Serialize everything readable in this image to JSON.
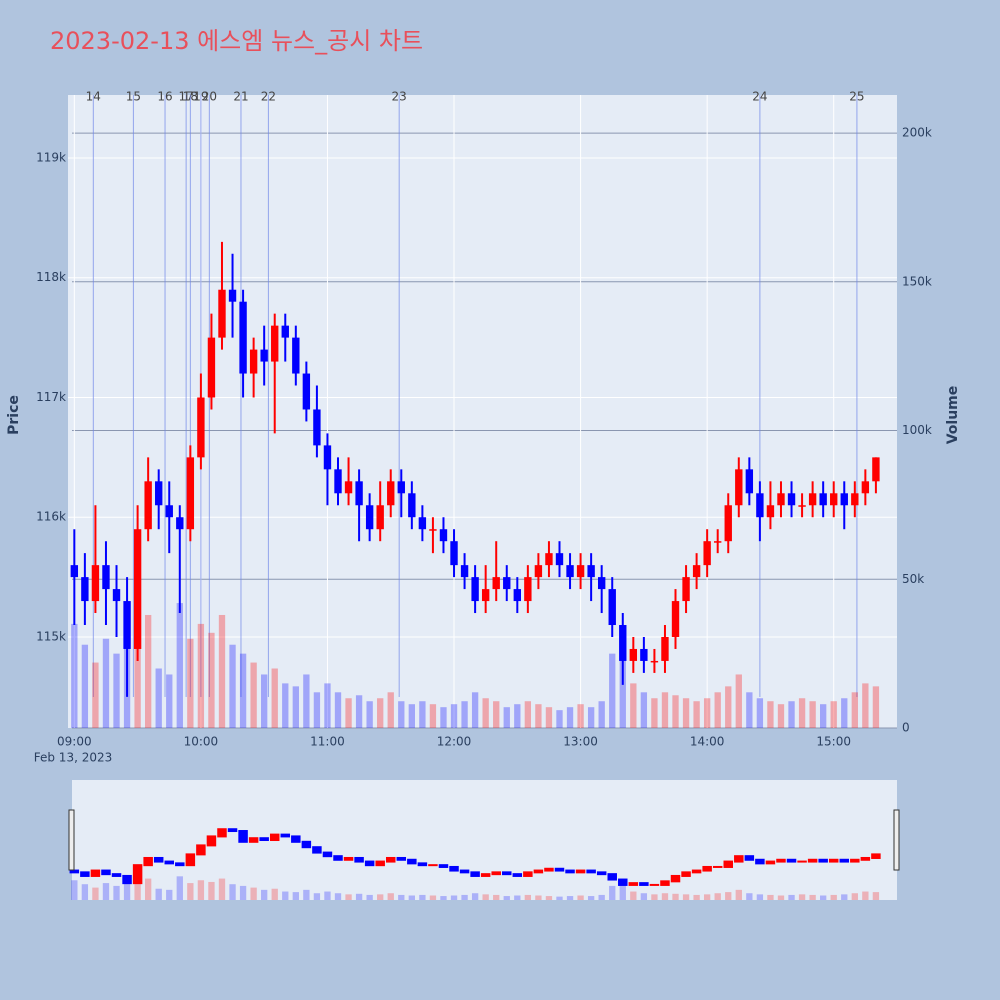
{
  "chart_data": {
    "type": "candlestick",
    "title": "2023-02-13 에스엠 뉴스_공시 차트",
    "y_label": "Price",
    "y2_label": "Volume",
    "x_date_label": "Feb 13, 2023",
    "x": [
      "2023-02-13 09:00",
      "2023-02-13 09:05",
      "2023-02-13 09:10",
      "2023-02-13 09:15",
      "2023-02-13 09:20",
      "2023-02-13 09:25",
      "2023-02-13 09:30",
      "2023-02-13 09:35",
      "2023-02-13 09:40",
      "2023-02-13 09:45",
      "2023-02-13 09:50",
      "2023-02-13 09:55",
      "2023-02-13 10:00",
      "2023-02-13 10:05",
      "2023-02-13 10:10",
      "2023-02-13 10:15",
      "2023-02-13 10:20",
      "2023-02-13 10:25",
      "2023-02-13 10:30",
      "2023-02-13 10:35",
      "2023-02-13 10:40",
      "2023-02-13 10:45",
      "2023-02-13 10:50",
      "2023-02-13 10:55",
      "2023-02-13 11:00",
      "2023-02-13 11:05",
      "2023-02-13 11:10",
      "2023-02-13 11:15",
      "2023-02-13 11:20",
      "2023-02-13 11:25",
      "2023-02-13 11:30",
      "2023-02-13 11:35",
      "2023-02-13 11:40",
      "2023-02-13 11:45",
      "2023-02-13 11:50",
      "2023-02-13 11:55",
      "2023-02-13 12:00",
      "2023-02-13 12:05",
      "2023-02-13 12:10",
      "2023-02-13 12:15",
      "2023-02-13 12:20",
      "2023-02-13 12:25",
      "2023-02-13 12:30",
      "2023-02-13 12:35",
      "2023-02-13 12:40",
      "2023-02-13 12:45",
      "2023-02-13 12:50",
      "2023-02-13 12:55",
      "2023-02-13 13:00",
      "2023-02-13 13:05",
      "2023-02-13 13:10",
      "2023-02-13 13:15",
      "2023-02-13 13:20",
      "2023-02-13 13:25",
      "2023-02-13 13:30",
      "2023-02-13 13:35",
      "2023-02-13 13:40",
      "2023-02-13 13:45",
      "2023-02-13 13:50",
      "2023-02-13 13:55",
      "2023-02-13 14:00",
      "2023-02-13 14:05",
      "2023-02-13 14:10",
      "2023-02-13 14:15",
      "2023-02-13 14:20",
      "2023-02-13 14:25",
      "2023-02-13 14:30",
      "2023-02-13 14:35",
      "2023-02-13 14:40",
      "2023-02-13 14:45",
      "2023-02-13 14:50",
      "2023-02-13 14:55",
      "2023-02-13 15:00",
      "2023-02-13 15:05",
      "2023-02-13 15:10",
      "2023-02-13 15:15",
      "2023-02-13 15:20"
    ],
    "open": [
      115600,
      115500,
      115300,
      115600,
      115400,
      115300,
      114900,
      115900,
      116300,
      116100,
      116000,
      115900,
      116500,
      117000,
      117500,
      117900,
      117800,
      117200,
      117400,
      117300,
      117600,
      117500,
      117200,
      116900,
      116600,
      116400,
      116200,
      116300,
      116100,
      115900,
      116100,
      116300,
      116200,
      116000,
      115900,
      115900,
      115800,
      115600,
      115500,
      115300,
      115400,
      115500,
      115400,
      115300,
      115500,
      115600,
      115700,
      115600,
      115500,
      115600,
      115500,
      115400,
      115100,
      114800,
      114900,
      114800,
      114800,
      115000,
      115300,
      115500,
      115600,
      115800,
      115800,
      116100,
      116400,
      116200,
      116000,
      116100,
      116200,
      116100,
      116100,
      116200,
      116100,
      116200,
      116100,
      116200,
      116300
    ],
    "high": [
      115900,
      115700,
      116100,
      115800,
      115600,
      115500,
      116100,
      116500,
      116400,
      116300,
      116100,
      116600,
      117200,
      117700,
      118300,
      118200,
      117900,
      117500,
      117600,
      117700,
      117700,
      117600,
      117300,
      117100,
      116700,
      116500,
      116500,
      116400,
      116200,
      116300,
      116400,
      116400,
      116300,
      116100,
      116000,
      116000,
      115900,
      115700,
      115600,
      115600,
      115800,
      115600,
      115500,
      115600,
      115700,
      115800,
      115800,
      115700,
      115700,
      115700,
      115600,
      115500,
      115200,
      115000,
      115000,
      114900,
      115100,
      115400,
      115600,
      115700,
      115900,
      115900,
      116200,
      116500,
      116500,
      116300,
      116300,
      116300,
      116300,
      116200,
      116300,
      116300,
      116300,
      116300,
      116300,
      116400,
      116500
    ],
    "low": [
      115100,
      115100,
      115200,
      115100,
      115000,
      114500,
      114800,
      115800,
      115900,
      115700,
      115200,
      115800,
      116400,
      116900,
      117400,
      117500,
      117000,
      117000,
      117100,
      116700,
      117300,
      117100,
      116800,
      116500,
      116100,
      116100,
      116100,
      115800,
      115800,
      115800,
      116000,
      116000,
      115900,
      115800,
      115700,
      115700,
      115500,
      115400,
      115200,
      115200,
      115300,
      115300,
      115200,
      115200,
      115400,
      115500,
      115500,
      115400,
      115400,
      115300,
      115200,
      115000,
      114600,
      114700,
      114700,
      114700,
      114700,
      114900,
      115200,
      115400,
      115500,
      115700,
      115700,
      116000,
      116100,
      115800,
      115900,
      116000,
      116000,
      116000,
      116000,
      116000,
      116000,
      115900,
      116000,
      116100,
      116200
    ],
    "close": [
      115500,
      115300,
      115600,
      115400,
      115300,
      114900,
      115900,
      116300,
      116100,
      116000,
      115900,
      116500,
      117000,
      117500,
      117900,
      117800,
      117200,
      117400,
      117300,
      117600,
      117500,
      117200,
      116900,
      116600,
      116400,
      116200,
      116300,
      116100,
      115900,
      116100,
      116300,
      116200,
      116000,
      115900,
      115900,
      115800,
      115600,
      115500,
      115300,
      115400,
      115500,
      115400,
      115300,
      115500,
      115600,
      115700,
      115600,
      115500,
      115600,
      115500,
      115400,
      115100,
      114800,
      114900,
      114800,
      114800,
      115000,
      115300,
      115500,
      115600,
      115800,
      115800,
      116100,
      116400,
      116200,
      116000,
      116100,
      116200,
      116100,
      116100,
      116200,
      116100,
      116200,
      116100,
      116200,
      116300,
      116500
    ],
    "volume": [
      35000,
      28000,
      22000,
      30000,
      25000,
      40000,
      33000,
      38000,
      20000,
      18000,
      42000,
      30000,
      35000,
      32000,
      38000,
      28000,
      25000,
      22000,
      18000,
      20000,
      15000,
      14000,
      18000,
      12000,
      15000,
      12000,
      10000,
      11000,
      9000,
      10000,
      12000,
      9000,
      8000,
      9000,
      8000,
      7000,
      8000,
      9000,
      12000,
      10000,
      9000,
      7000,
      8000,
      9000,
      8000,
      7000,
      6000,
      7000,
      8000,
      7000,
      9000,
      25000,
      30000,
      15000,
      12000,
      10000,
      12000,
      11000,
      10000,
      9000,
      10000,
      12000,
      14000,
      18000,
      12000,
      10000,
      9000,
      8000,
      9000,
      10000,
      9000,
      8000,
      9000,
      10000,
      12000,
      15000,
      14000
    ],
    "up_color": "#ff0000",
    "down_color": "#0000ff",
    "xlim": [
      "2023-02-13 08:57",
      "2023-02-13 15:30"
    ],
    "xticks": [
      {
        "value": "2023-02-13 09:00",
        "label": "09:00"
      },
      {
        "value": "2023-02-13 10:00",
        "label": "10:00"
      },
      {
        "value": "2023-02-13 11:00",
        "label": "11:00"
      },
      {
        "value": "2023-02-13 12:00",
        "label": "12:00"
      },
      {
        "value": "2023-02-13 13:00",
        "label": "13:00"
      },
      {
        "value": "2023-02-13 14:00",
        "label": "14:00"
      },
      {
        "value": "2023-02-13 15:00",
        "label": "15:00"
      }
    ],
    "ylim": [
      114240,
      119526
    ],
    "yticks": [
      {
        "value": 115000,
        "label": "115k"
      },
      {
        "value": 116000,
        "label": "116k"
      },
      {
        "value": 117000,
        "label": "117k"
      },
      {
        "value": 118000,
        "label": "118k"
      },
      {
        "value": 119000,
        "label": "119k"
      }
    ],
    "y2lim": [
      0,
      212800
    ],
    "y2ticks": [
      0,
      {
        "value": 50000,
        "label": "50k"
      },
      {
        "value": 100000,
        "label": "100k"
      },
      {
        "value": 150000,
        "label": "150k"
      },
      {
        "value": 200000,
        "label": "200k"
      }
    ],
    "news": [
      {
        "label": "14",
        "x": "2023-02-13 09:09"
      },
      {
        "label": "15",
        "x": "2023-02-13 09:28"
      },
      {
        "label": "16",
        "x": "2023-02-13 09:43"
      },
      {
        "label": "17",
        "x": "2023-02-13 09:53"
      },
      {
        "label": "18",
        "x": "2023-02-13 09:55"
      },
      {
        "label": "19",
        "x": "2023-02-13 10:00"
      },
      {
        "label": "20",
        "x": "2023-02-13 10:04"
      },
      {
        "label": "21",
        "x": "2023-02-13 10:19"
      },
      {
        "label": "22",
        "x": "2023-02-13 10:32"
      },
      {
        "label": "23",
        "x": "2023-02-13 11:34"
      },
      {
        "label": "24",
        "x": "2023-02-13 14:25"
      },
      {
        "label": "25",
        "x": "2023-02-13 15:11"
      }
    ],
    "grid": true
  }
}
